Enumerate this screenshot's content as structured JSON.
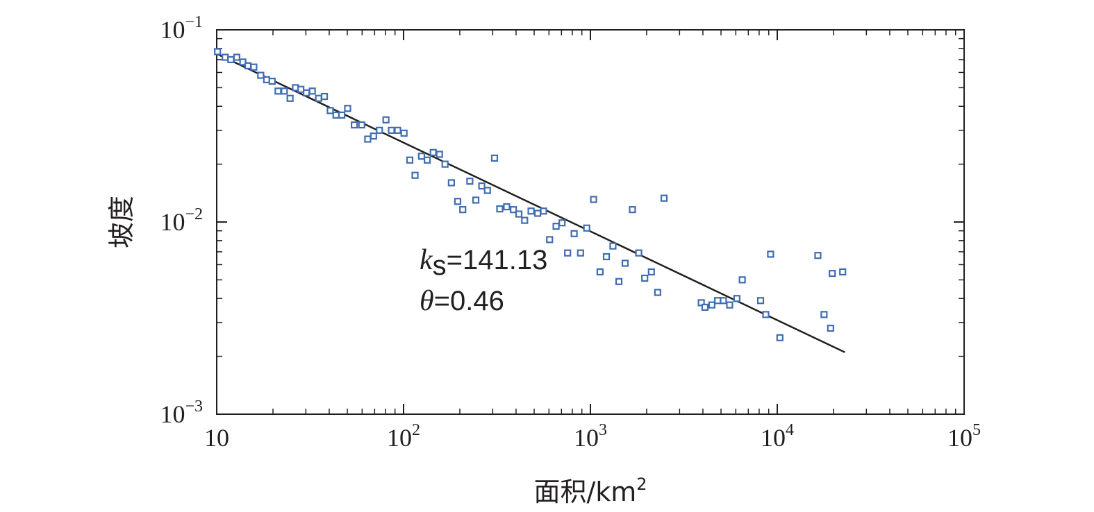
{
  "chart_data": {
    "type": "scatter",
    "xscale": "log",
    "yscale": "log",
    "xlim": [
      10,
      100000
    ],
    "ylim": [
      0.001,
      0.1
    ],
    "xlabel": "面积/km",
    "xlabel_sup": "2",
    "ylabel": "坡度",
    "x_ticks": [
      {
        "base": "10",
        "exp": ""
      },
      {
        "base": "10",
        "exp": "2"
      },
      {
        "base": "10",
        "exp": "3"
      },
      {
        "base": "10",
        "exp": "4"
      },
      {
        "base": "10",
        "exp": "5"
      }
    ],
    "y_ticks": [
      {
        "base": "10",
        "exp": "−3"
      },
      {
        "base": "10",
        "exp": "−2"
      },
      {
        "base": "10",
        "exp": "−1"
      }
    ],
    "annotation": {
      "ks_symbol": "k",
      "ks_sub": "s",
      "ks_value": "=141.13",
      "theta_symbol": "θ",
      "theta_value": "=0.46"
    },
    "marker_color": "#3f6db0",
    "line_color": "#231f20",
    "fit_line": {
      "x": [
        10,
        23000
      ],
      "y": [
        0.075,
        0.0021
      ]
    },
    "points": [
      [
        10.1,
        0.077
      ],
      [
        11.1,
        0.072
      ],
      [
        11.9,
        0.07
      ],
      [
        12.8,
        0.072
      ],
      [
        13.8,
        0.068
      ],
      [
        14.7,
        0.065
      ],
      [
        15.8,
        0.064
      ],
      [
        17.2,
        0.058
      ],
      [
        18.5,
        0.055
      ],
      [
        19.8,
        0.054
      ],
      [
        21.3,
        0.048
      ],
      [
        23.0,
        0.048
      ],
      [
        24.7,
        0.044
      ],
      [
        26.4,
        0.05
      ],
      [
        28.2,
        0.049
      ],
      [
        30.2,
        0.047
      ],
      [
        32.5,
        0.048
      ],
      [
        35.1,
        0.044
      ],
      [
        37.7,
        0.045
      ],
      [
        40.5,
        0.038
      ],
      [
        43.5,
        0.036
      ],
      [
        46.7,
        0.036
      ],
      [
        50.2,
        0.039
      ],
      [
        54.5,
        0.032
      ],
      [
        59.7,
        0.032
      ],
      [
        64.3,
        0.027
      ],
      [
        69.1,
        0.028
      ],
      [
        74.3,
        0.03
      ],
      [
        80.5,
        0.034
      ],
      [
        86.1,
        0.03
      ],
      [
        93.0,
        0.03
      ],
      [
        100.6,
        0.029
      ],
      [
        108.0,
        0.021
      ],
      [
        115.2,
        0.0175
      ],
      [
        124.8,
        0.022
      ],
      [
        133.9,
        0.021
      ],
      [
        144.1,
        0.023
      ],
      [
        155.7,
        0.0225
      ],
      [
        166.7,
        0.02
      ],
      [
        180.3,
        0.016
      ],
      [
        194.9,
        0.0128
      ],
      [
        207.4,
        0.0116
      ],
      [
        226.3,
        0.0163
      ],
      [
        243.7,
        0.013
      ],
      [
        262.1,
        0.0154
      ],
      [
        281.2,
        0.0146
      ],
      [
        306.8,
        0.0215
      ],
      [
        327.2,
        0.0117
      ],
      [
        356.3,
        0.012
      ],
      [
        387.2,
        0.0116
      ],
      [
        414.1,
        0.011
      ],
      [
        444.6,
        0.0102
      ],
      [
        481.2,
        0.0114
      ],
      [
        522.0,
        0.0111
      ],
      [
        561.3,
        0.0114
      ],
      [
        605.0,
        0.0081
      ],
      [
        655.0,
        0.0095
      ],
      [
        705.1,
        0.0099
      ],
      [
        755.1,
        0.0069
      ],
      [
        818.6,
        0.0087
      ],
      [
        885.5,
        0.0069
      ],
      [
        955.5,
        0.0093
      ],
      [
        1040,
        0.0131
      ],
      [
        1126,
        0.0055
      ],
      [
        1218,
        0.0066
      ],
      [
        1320,
        0.0075
      ],
      [
        1421,
        0.0049
      ],
      [
        1534,
        0.0061
      ],
      [
        1678,
        0.0116
      ],
      [
        1814,
        0.0069
      ],
      [
        1953,
        0.0051
      ],
      [
        2120,
        0.0055
      ],
      [
        2291,
        0.0043
      ],
      [
        2478,
        0.0133
      ],
      [
        3920,
        0.0038
      ],
      [
        4103,
        0.0036
      ],
      [
        4468,
        0.0037
      ],
      [
        4797,
        0.0039
      ],
      [
        5150,
        0.0039
      ],
      [
        5560,
        0.0037
      ],
      [
        6080,
        0.004
      ],
      [
        6496,
        0.005
      ],
      [
        8143,
        0.0039
      ],
      [
        8682,
        0.0033
      ],
      [
        9212,
        0.0068
      ],
      [
        10330,
        0.0025
      ],
      [
        16500,
        0.0067
      ],
      [
        17800,
        0.0033
      ],
      [
        19300,
        0.0028
      ],
      [
        19700,
        0.0054
      ],
      [
        22400,
        0.0055
      ]
    ]
  }
}
